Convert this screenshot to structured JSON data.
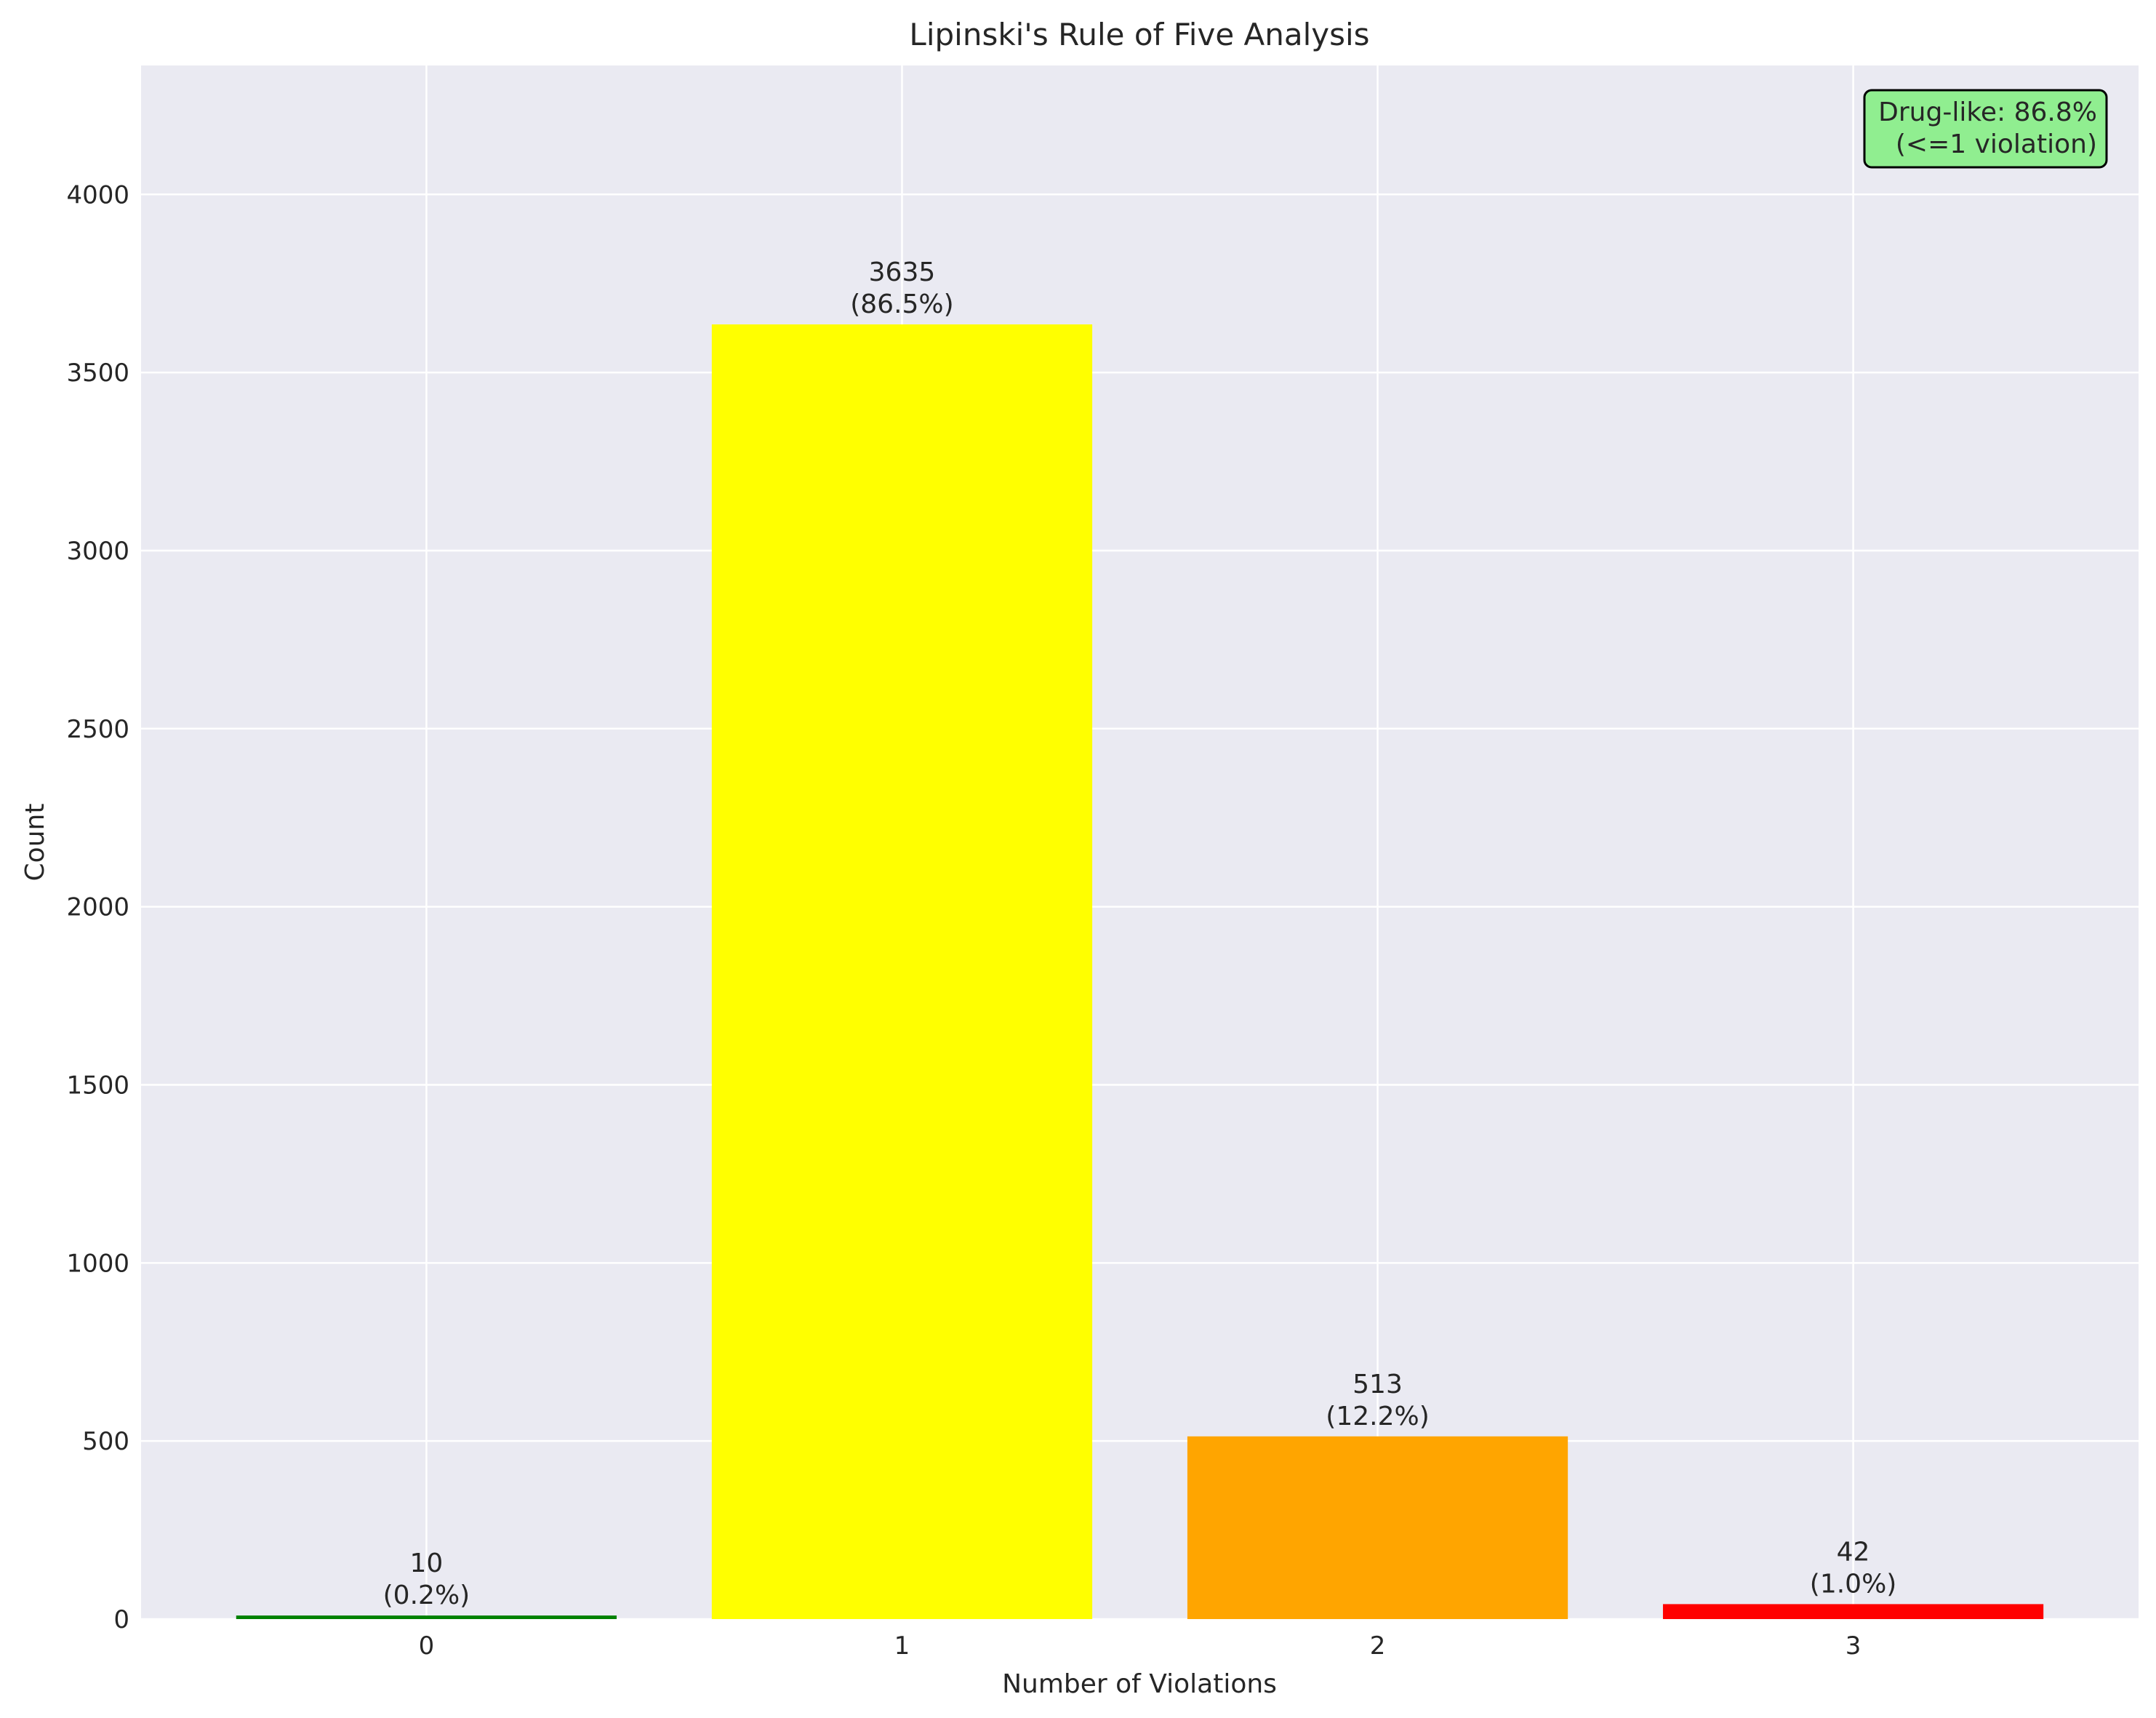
{
  "chart_data": {
    "type": "bar",
    "title": "Lipinski's Rule of Five Analysis",
    "xlabel": "Number of Violations",
    "ylabel": "Count",
    "categories": [
      "0",
      "1",
      "2",
      "3"
    ],
    "values": [
      10,
      3635,
      513,
      42
    ],
    "value_labels": [
      "10",
      "3635",
      "513",
      "42"
    ],
    "percent_labels": [
      "(0.2%)",
      "(86.5%)",
      "(12.2%)",
      "(1.0%)"
    ],
    "colors": [
      "#008000",
      "#ffff00",
      "#ffa500",
      "#ff0000"
    ],
    "ylim": [
      0,
      4362
    ],
    "yticks": [
      0,
      500,
      1000,
      1500,
      2000,
      2500,
      3000,
      3500,
      4000
    ],
    "grid": true,
    "background_color": "#eaeaf2",
    "annotation": {
      "line1": "Drug-like: 86.8%",
      "line2": "(<=1 violation)",
      "background_color": "#90ee90",
      "placement": "top-right"
    }
  }
}
